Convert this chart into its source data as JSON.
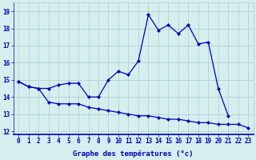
{
  "xlabel": "Graphe des températures (°c)",
  "hours": [
    0,
    1,
    2,
    3,
    4,
    5,
    6,
    7,
    8,
    9,
    10,
    11,
    12,
    13,
    14,
    15,
    16,
    17,
    18,
    19,
    20,
    21,
    22,
    23
  ],
  "line_top": [
    14.9,
    14.6,
    14.5,
    14.5,
    14.7,
    14.8,
    14.8,
    14.0,
    14.0,
    15.0,
    15.5,
    15.3,
    16.1,
    18.8,
    17.9,
    18.2,
    17.7,
    18.2,
    17.1,
    17.2,
    14.5,
    12.9,
    null,
    null
  ],
  "line_bottom": [
    14.9,
    14.6,
    14.5,
    13.7,
    13.6,
    13.6,
    13.6,
    13.4,
    13.3,
    13.2,
    13.1,
    13.0,
    12.9,
    12.9,
    12.8,
    12.7,
    12.7,
    12.6,
    12.5,
    12.5,
    12.4,
    12.4,
    12.4,
    12.2
  ],
  "ylim": [
    11.8,
    19.5
  ],
  "yticks": [
    12,
    13,
    14,
    15,
    16,
    17,
    18,
    19
  ],
  "bg_color": "#d6eeee",
  "grid_color": "#aacccc",
  "line_color": "#0000bb",
  "marker_color": "#0000bb",
  "markersize": 2.2,
  "linewidth": 0.9,
  "tick_fontsize": 5.5,
  "xlabel_fontsize": 6.5
}
